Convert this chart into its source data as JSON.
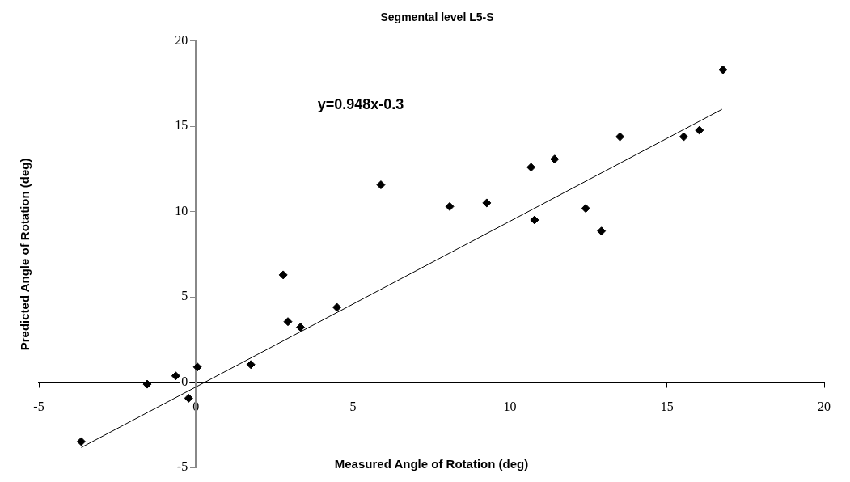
{
  "chart_data": {
    "type": "scatter",
    "title": "Segmental level L5-S",
    "xlabel": "Measured Angle of Rotation (deg)",
    "ylabel": "Predicted Angle of Rotation (deg)",
    "annotations": [
      "y=0.948x-0.3"
    ],
    "xlim": [
      -5,
      20
    ],
    "xticks": [
      -5,
      0,
      5,
      10,
      15,
      20
    ],
    "ylim": [
      -5,
      20
    ],
    "yticks": [
      -5,
      0,
      5,
      10,
      15,
      20
    ],
    "grid": false,
    "legend": false,
    "marker": "diamond",
    "series": [
      {
        "color": "#000000",
        "x": [
          -3.65,
          -1.55,
          -0.64,
          -0.23,
          0.05,
          1.75,
          2.78,
          2.93,
          3.33,
          4.49,
          5.89,
          8.08,
          9.26,
          10.67,
          10.78,
          11.42,
          12.41,
          12.91,
          13.5,
          15.53,
          16.03,
          16.78
        ],
        "values": [
          -3.48,
          -0.12,
          0.37,
          -0.94,
          0.89,
          1.03,
          6.29,
          3.55,
          3.22,
          4.39,
          11.57,
          10.3,
          10.51,
          12.6,
          9.51,
          13.08,
          10.19,
          8.86,
          14.39,
          14.39,
          14.77,
          18.32
        ]
      },
      {
        "type": "line",
        "color": "#000000",
        "marker": "none",
        "line_style": "solid",
        "x": [
          -3.65,
          16.75
        ],
        "values": [
          -3.83,
          16.0
        ]
      }
    ]
  }
}
